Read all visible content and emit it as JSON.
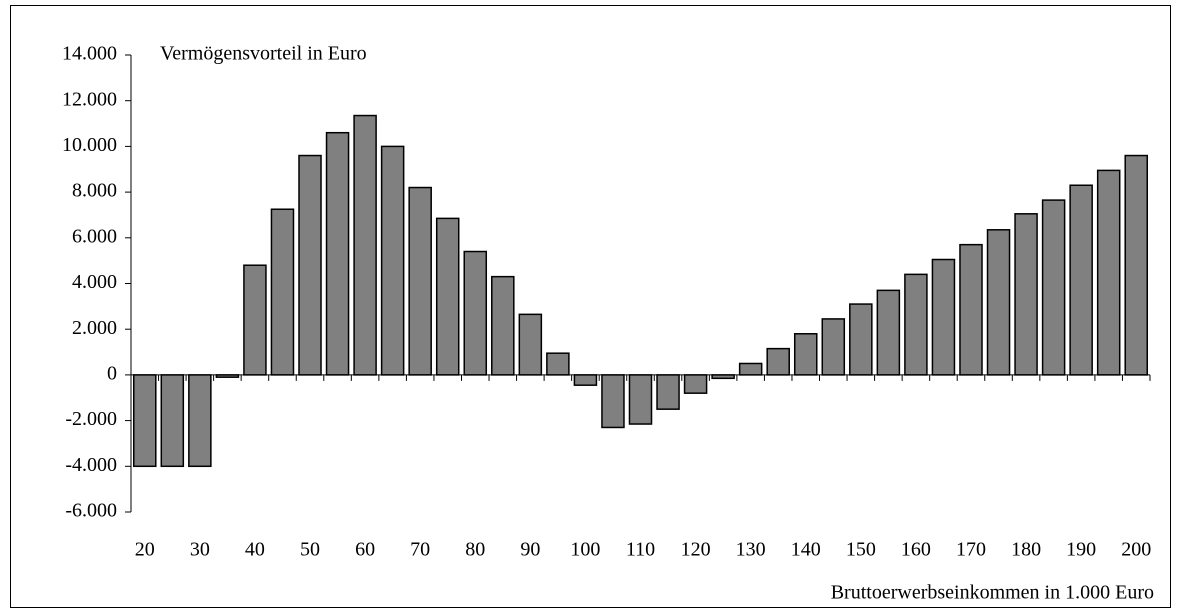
{
  "chart_data": {
    "type": "bar",
    "y_label": "Vermögensvorteil in Euro",
    "x_label": "Bruttoerwerbseinkommen in 1.000 Euro",
    "categories": [
      "20",
      null,
      "30",
      null,
      "40",
      null,
      "50",
      null,
      "60",
      null,
      "70",
      null,
      "80",
      null,
      "90",
      null,
      "100",
      null,
      "110",
      null,
      "120",
      null,
      "130",
      null,
      "140",
      null,
      "150",
      null,
      "160",
      null,
      "170",
      null,
      "180",
      null,
      "190",
      null,
      "200"
    ],
    "values": [
      -4000,
      -4000,
      -4000,
      -100,
      4800,
      7250,
      9600,
      10600,
      11350,
      10000,
      8200,
      6850,
      5400,
      4300,
      2650,
      950,
      -450,
      -2300,
      -2150,
      -1500,
      -800,
      -150,
      500,
      1150,
      1800,
      2450,
      3100,
      3700,
      4400,
      5050,
      5700,
      6350,
      7050,
      7650,
      8300,
      8950,
      9600
    ],
    "color": "#808080",
    "ylim": [
      -6000,
      14000
    ],
    "yticks": [
      {
        "value": -6000,
        "label": "-6.000"
      },
      {
        "value": -4000,
        "label": "-4.000"
      },
      {
        "value": -2000,
        "label": "-2.000"
      },
      0,
      {
        "value": 2000,
        "label": "2.000"
      },
      {
        "value": 4000,
        "label": "4.000"
      },
      {
        "value": 6000,
        "label": "6.000"
      },
      {
        "value": 8000,
        "label": "8.000"
      },
      {
        "value": 10000,
        "label": "10.000"
      },
      {
        "value": 12000,
        "label": "12.000"
      },
      {
        "value": 14000,
        "label": "14.000"
      }
    ],
    "grid": false
  }
}
